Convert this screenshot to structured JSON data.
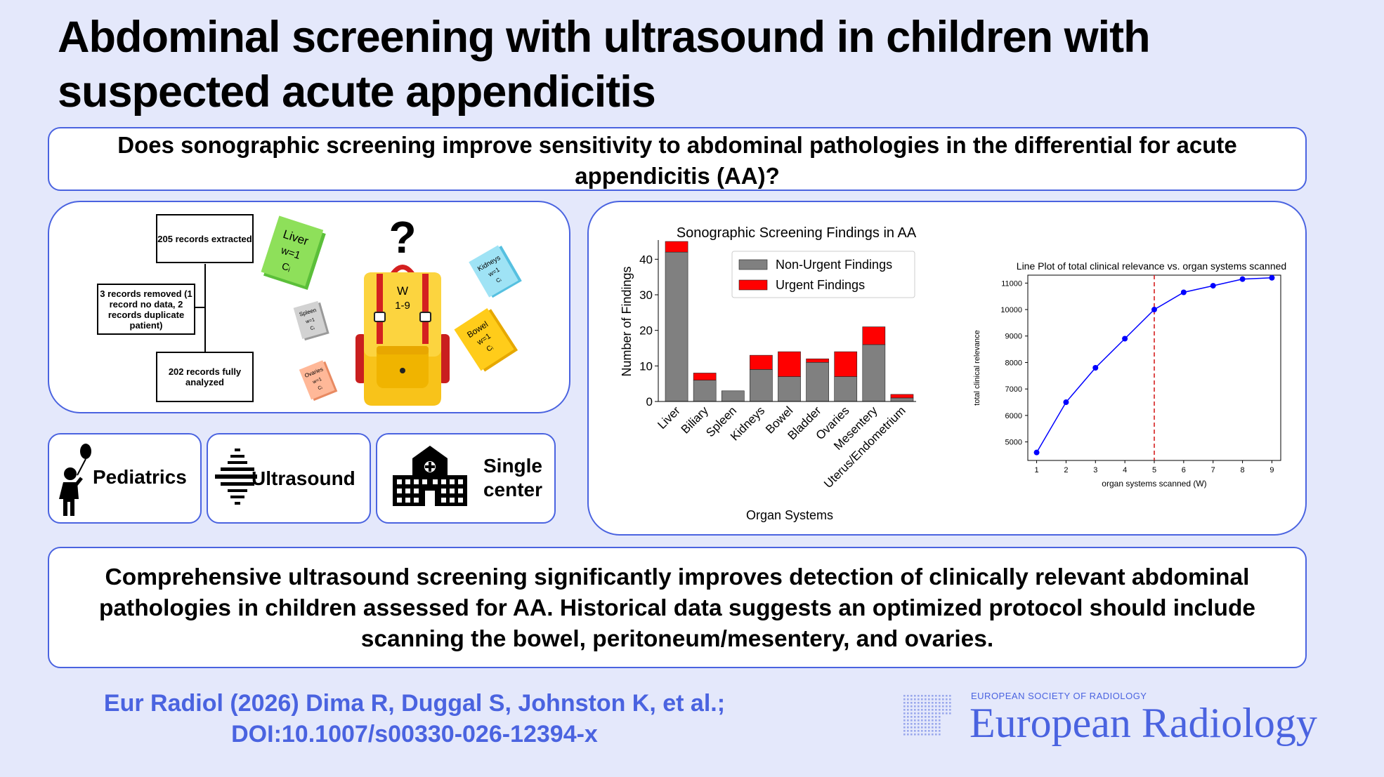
{
  "title_line1": "Abdominal screening with ultrasound in children with",
  "title_line2": "suspected acute appendicitis",
  "question": "Does sonographic screening improve sensitivity to abdominal pathologies in the differential for acute appendicitis (AA)?",
  "flow": {
    "extracted": "205 records extracted",
    "removed": "3 records removed (1 record no data, 2 records duplicate patient)",
    "analyzed": "202 records fully analyzed"
  },
  "books": {
    "liver": {
      "name": "Liver",
      "w": "w=1",
      "c": "Cᵢ"
    },
    "kidneys": {
      "name": "Kidneys",
      "w": "w=1",
      "c": "Cᵢ"
    },
    "spleen": {
      "name": "Spleen",
      "w": "w=1",
      "c": "Cᵢ"
    },
    "bowel": {
      "name": "Bowel",
      "w": "w=1",
      "c": "Cᵢ"
    },
    "ovaries": {
      "name": "Ovaries",
      "w": "w=1",
      "c": "Cᵢ"
    }
  },
  "backpack": {
    "question_mark": "?",
    "w": "W",
    "range": "1-9"
  },
  "keywords": {
    "pediatrics": "Pediatrics",
    "ultrasound": "Ultrasound",
    "single": "Single",
    "center": "center"
  },
  "chart_data": [
    {
      "type": "bar",
      "title": "Sonographic Screening Findings in AA",
      "xlabel": "Organ Systems",
      "ylabel": "Number of Findings",
      "ylim": [
        0,
        45
      ],
      "yticks": [
        0,
        10,
        20,
        30,
        40
      ],
      "categories": [
        "Liver",
        "Biliary",
        "Spleen",
        "Kidneys",
        "Bowel",
        "Bladder",
        "Ovaries",
        "Mesentery",
        "Uterus/Endometrium"
      ],
      "series": [
        {
          "name": "Non-Urgent Findings",
          "values": [
            42,
            6,
            3,
            9,
            7,
            11,
            7,
            16,
            1
          ],
          "color": "#808080"
        },
        {
          "name": "Urgent Findings",
          "values": [
            3,
            2,
            0,
            4,
            7,
            1,
            7,
            5,
            1
          ],
          "color": "#ff0000"
        }
      ],
      "stacked": true,
      "legend": "top-right"
    },
    {
      "type": "line",
      "title": "Line Plot of total clinical relevance vs. organ systems scanned",
      "xlabel": "organ systems scanned (W)",
      "ylabel": "total clinical relevance",
      "x": [
        1,
        2,
        3,
        4,
        5,
        6,
        7,
        8,
        9
      ],
      "y": [
        4600,
        6500,
        7800,
        8900,
        10000,
        10650,
        10900,
        11150,
        11200
      ],
      "xlim": [
        0.7,
        9.3
      ],
      "ylim": [
        4300,
        11300
      ],
      "yticks": [
        5000,
        6000,
        7000,
        8000,
        9000,
        10000,
        11000
      ],
      "xticks": [
        1,
        2,
        3,
        4,
        5,
        6,
        7,
        8,
        9
      ],
      "line_color": "#0000ff",
      "marker_line_x": 5,
      "marker_line_color": "#d62020"
    }
  ],
  "conclusion": "Comprehensive ultrasound screening significantly improves detection of clinically relevant abdominal pathologies in children assessed for AA. Historical data suggests an optimized protocol should include scanning the bowel, peritoneum/mesentery, and ovaries.",
  "citation_line1": "Eur Radiol (2026) Dima R, Duggal S, Johnston K, et al.;",
  "citation_line2": "DOI:10.1007/s00330-026-12394-x",
  "society": "EUROPEAN SOCIETY OF RADIOLOGY",
  "journal": "European Radiology"
}
